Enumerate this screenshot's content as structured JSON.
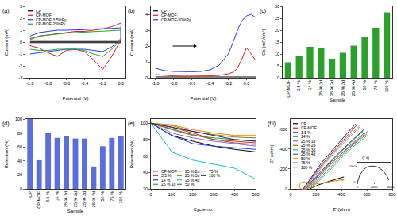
{
  "chart_data": [
    {
      "type": "line",
      "title": "(a)",
      "x_label": "Potential (V)",
      "y_label": "Current (mA)",
      "x": [
        -1,
        -0.9,
        -0.8,
        -0.7,
        -0.6,
        -0.5,
        -0.4,
        -0.3,
        -0.2,
        -0.1,
        0,
        0,
        -0.1,
        -0.2,
        -0.3,
        -0.4,
        -0.5,
        -0.6,
        -0.7,
        -0.8,
        -0.9,
        -1
      ],
      "series": [
        {
          "name": "CP",
          "color": "#000000",
          "values": [
            0.05,
            0.05,
            0.05,
            0.05,
            0.05,
            0.05,
            0.05,
            0.05,
            0.05,
            0.05,
            0.05,
            -0.05,
            -0.05,
            -0.05,
            -0.05,
            -0.05,
            -0.05,
            -0.05,
            -0.05,
            -0.05,
            -0.05,
            -0.05
          ]
        },
        {
          "name": "CP-MOF",
          "color": "#e41a1c",
          "values": [
            0.3,
            0.5,
            0.6,
            0.7,
            0.8,
            0.9,
            0.9,
            1.0,
            1.1,
            1.3,
            1.6,
            0.2,
            -1.2,
            -2.3,
            -1.5,
            -0.8,
            -0.6,
            -0.7,
            -1.2,
            -0.9,
            -0.5,
            -0.3
          ]
        },
        {
          "name": "CP-MOF-3.5%Py",
          "color": "#1f3cff",
          "values": [
            0.5,
            0.8,
            0.9,
            1.0,
            1.0,
            1.0,
            1.05,
            1.1,
            1.1,
            1.15,
            1.2,
            0.3,
            -0.4,
            -0.8,
            -0.7,
            -0.6,
            -0.6,
            -0.6,
            -0.7,
            -0.8,
            -0.9,
            -1.0
          ]
        },
        {
          "name": "CP-MOF-25%Py",
          "color": "#2ca02c",
          "values": [
            0.2,
            0.5,
            0.6,
            0.7,
            0.75,
            0.8,
            0.85,
            0.85,
            0.9,
            0.95,
            1.0,
            0.2,
            -0.6,
            -1.2,
            -1.0,
            -0.7,
            -0.6,
            -0.6,
            -0.6,
            -0.7,
            -0.7,
            -0.6
          ]
        }
      ],
      "xlim": [
        -1.05,
        0.05
      ],
      "xticks": [
        {
          "value": -1,
          "label": "-1.0"
        },
        -0.8,
        -0.6,
        -0.4,
        -0.2,
        {
          "value": 0,
          "label": "0.0"
        }
      ],
      "ylim": [
        -3,
        3
      ],
      "yticks": [
        -3,
        -2,
        -1,
        0,
        1,
        2,
        3
      ],
      "legend": "upper left",
      "grid": false
    },
    {
      "type": "line",
      "title": "(b)",
      "x_label": "Potential (V)",
      "y_label": "Current (mA)",
      "x": [
        -1,
        -0.9,
        -0.8,
        -0.7,
        -0.6,
        -0.5,
        -0.4,
        -0.3,
        -0.2,
        -0.15,
        -0.1,
        -0.05,
        0,
        0.05,
        0.1
      ],
      "series": [
        {
          "name": "CP",
          "color": "#000000",
          "values": [
            0.05,
            0.05,
            0.05,
            0.05,
            0.05,
            0.05,
            0.05,
            0.05,
            0.05,
            0.05,
            0.05,
            0.05,
            0.05,
            0.05,
            0.05
          ]
        },
        {
          "name": "CP-MOF",
          "color": "#e41a1c",
          "values": [
            0.2,
            0.15,
            0.12,
            0.1,
            0.1,
            0.1,
            0.12,
            0.15,
            0.25,
            0.35,
            0.6,
            1.2,
            1.9,
            1.5,
            1.1
          ]
        },
        {
          "name": "CP-MOF-50%Py",
          "color": "#1f3cff",
          "values": [
            0.6,
            0.45,
            0.4,
            0.38,
            0.38,
            0.4,
            0.5,
            0.8,
            1.5,
            2.2,
            3.0,
            3.6,
            3.9,
            4.0,
            3.8
          ]
        }
      ],
      "xlim": [
        -1.05,
        0.1
      ],
      "xticks": [
        {
          "value": -1,
          "label": "-1.0"
        },
        -0.8,
        -0.6,
        -0.4,
        -0.2,
        {
          "value": 0,
          "label": "0.0"
        }
      ],
      "ylim": [
        0,
        4.5
      ],
      "yticks": [
        0,
        1,
        2,
        3,
        4
      ],
      "legend": "upper left",
      "grid": false
    },
    {
      "type": "bar",
      "title": "(c)",
      "x_label": "Sample",
      "y_label": "Cs (mF/cm²)",
      "categories": [
        "CP-MOF",
        "3.5 %",
        "14 %",
        "25 % 1d",
        "25 % 2d",
        "25 % 3d",
        "25 % 4d",
        "50 %",
        "75 %",
        "100 %"
      ],
      "values": [
        6.5,
        9,
        13,
        12.5,
        8,
        10.5,
        13.5,
        17,
        21,
        27.5
      ],
      "color": "#2ca02c",
      "ylim": [
        0,
        30
      ],
      "yticks": [
        0,
        5,
        10,
        15,
        20,
        25,
        30
      ],
      "grid": false
    },
    {
      "type": "bar",
      "title": "(d)",
      "x_label": "Sample",
      "y_label": "Retention (%)",
      "categories": [
        "CP",
        "CP-MOF",
        "3.5 %",
        "14 %",
        "25 % 1d",
        "25 % 2d",
        "25 % 3d",
        "25 % 4d",
        "50 %",
        "75 %",
        "100 %"
      ],
      "values": [
        100,
        41,
        80,
        73,
        75,
        72,
        72,
        32,
        61,
        73,
        75
      ],
      "color": "#5b6ee1",
      "ylim": [
        0,
        100
      ],
      "yticks": [
        0,
        20,
        40,
        60,
        80,
        100
      ],
      "grid": false
    },
    {
      "type": "line",
      "title": "(e)",
      "x_label": "Cycle no.",
      "y_label": "Retention (%)",
      "x": [
        0,
        100,
        200,
        300,
        400,
        500
      ],
      "series": [
        {
          "name": "CP-MOF",
          "color": "#000000",
          "values": [
            100,
            85,
            78,
            72,
            68,
            65
          ]
        },
        {
          "name": "3.5 %",
          "color": "#e41a1c",
          "values": [
            100,
            95,
            88,
            80,
            78,
            76
          ]
        },
        {
          "name": "14 %",
          "color": "#1f3cff",
          "values": [
            100,
            85,
            75,
            72,
            70,
            68
          ]
        },
        {
          "name": "25 % 1d",
          "color": "#2ca02c",
          "values": [
            100,
            92,
            85,
            82,
            80,
            78
          ]
        },
        {
          "name": "25 % 2d",
          "color": "#9467bd",
          "values": [
            100,
            88,
            82,
            78,
            75,
            72
          ]
        },
        {
          "name": "25 % 3d",
          "color": "#808000",
          "values": [
            100,
            97,
            90,
            86,
            83,
            82
          ]
        },
        {
          "name": "25 % 4d",
          "color": "#17becf",
          "values": [
            100,
            65,
            55,
            50,
            45,
            32
          ]
        },
        {
          "name": "50 %",
          "color": "#8c564b",
          "values": [
            100,
            93,
            86,
            80,
            76,
            74
          ]
        },
        {
          "name": "75 %",
          "color": "#ff7f0e",
          "values": [
            100,
            98,
            92,
            88,
            85,
            85
          ]
        },
        {
          "name": "100 %",
          "color": "#1a237e",
          "values": [
            100,
            95,
            90,
            85,
            80,
            78
          ]
        }
      ],
      "xlim": [
        0,
        500
      ],
      "xticks": [
        0,
        100,
        200,
        300,
        400,
        500
      ],
      "ylim": [
        20,
        105
      ],
      "yticks": [
        20,
        40,
        60,
        80,
        100
      ],
      "legend": "lower left",
      "grid": false
    },
    {
      "type": "line",
      "title": "(f i)",
      "x_label": "Z' (ohm)",
      "y_label": "Z'' (ohm)",
      "series": [
        {
          "name": "CP",
          "color": "#000000",
          "x": [
            150,
            220,
            300,
            380,
            420
          ],
          "values": [
            0,
            -40,
            -75,
            -105,
            -120
          ]
        },
        {
          "name": "CP-MOF",
          "color": "#e41a1c",
          "x": [
            100,
            170,
            250,
            340,
            430,
            520
          ],
          "values": [
            0,
            -120,
            -250,
            -380,
            -510,
            -640
          ]
        },
        {
          "name": "3.5 %",
          "color": "#1f3cff",
          "x": [
            110,
            190,
            280,
            380,
            480,
            580
          ],
          "values": [
            0,
            -110,
            -230,
            -360,
            -480,
            -600
          ]
        },
        {
          "name": "14 %",
          "color": "#2ca02c",
          "x": [
            130,
            200,
            280,
            370,
            470,
            570
          ],
          "values": [
            0,
            -105,
            -220,
            -340,
            -460,
            -580
          ]
        },
        {
          "name": "25 % 1d",
          "color": "#9467bd",
          "x": [
            140,
            210,
            290,
            380,
            480,
            580
          ],
          "values": [
            0,
            -100,
            -210,
            -330,
            -450,
            -560
          ]
        },
        {
          "name": "25 % 2d",
          "color": "#808000",
          "x": [
            150,
            220,
            300,
            390,
            490,
            600
          ],
          "values": [
            0,
            -90,
            -200,
            -320,
            -440,
            -550
          ]
        },
        {
          "name": "25 % 3d",
          "color": "#17becf",
          "x": [
            160,
            230,
            310,
            400,
            500,
            610
          ],
          "values": [
            0,
            -85,
            -190,
            -310,
            -430,
            -540
          ]
        },
        {
          "name": "25 % 4d",
          "color": "#8c564b",
          "x": [
            120,
            200,
            290,
            390,
            500,
            610
          ],
          "values": [
            0,
            -110,
            -220,
            -340,
            -460,
            -580
          ]
        },
        {
          "name": "50 %",
          "color": "#ff7f0e",
          "x": [
            110,
            180,
            260,
            350,
            450,
            550
          ],
          "values": [
            0,
            -115,
            -240,
            -370,
            -500,
            -630
          ]
        },
        {
          "name": "75 %",
          "color": "#1a237e",
          "x": [
            100,
            165,
            240,
            330,
            420,
            510
          ],
          "values": [
            0,
            -120,
            -255,
            -390,
            -520,
            -650
          ]
        },
        {
          "name": "100 %",
          "color": "#6baed6",
          "x": [
            105,
            175,
            255,
            345,
            440,
            540
          ],
          "values": [
            0,
            -115,
            -245,
            -375,
            -505,
            -630
          ]
        }
      ],
      "xlim": [
        0,
        800
      ],
      "xticks": [
        0,
        200,
        400,
        600,
        800
      ],
      "ylim": [
        0,
        -700
      ],
      "yticks": [
        0,
        -200,
        -400,
        -600
      ],
      "legend": "upper left",
      "grid": false
    },
    {
      "type": "line",
      "title": "(f ii)",
      "x": [
        0,
        300,
        700,
        1200,
        1800,
        2400,
        3000,
        3500,
        3800
      ],
      "series": [
        {
          "color": "#000000",
          "values": [
            0,
            -450,
            -750,
            -950,
            -1000,
            -950,
            -750,
            -450,
            -150
          ]
        }
      ],
      "xlim": [
        0,
        4000
      ],
      "xticks": [
        0,
        2000,
        4000
      ],
      "ylim": [
        0,
        -1200
      ],
      "yticks": [
        0,
        -1000
      ],
      "grid": false
    }
  ]
}
